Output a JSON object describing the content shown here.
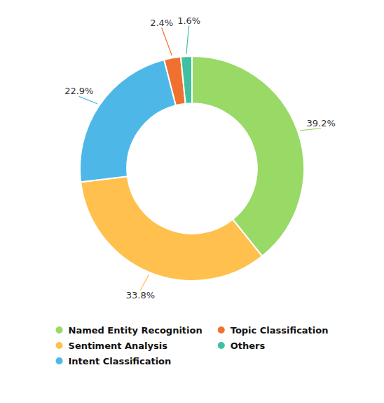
{
  "chart_data": {
    "type": "donut",
    "categories": [
      "Named Entity Recognition",
      "Sentiment Analysis",
      "Intent Classification",
      "Topic Classification",
      "Others"
    ],
    "values": [
      39.2,
      33.8,
      22.9,
      2.4,
      1.6
    ],
    "value_labels": [
      "39.2%",
      "33.8%",
      "22.9%",
      "2.4%",
      "1.6%"
    ],
    "colors": [
      "#99d966",
      "#ffc04d",
      "#4db8e8",
      "#f07030",
      "#40c0a0"
    ],
    "data_labels": true,
    "legend": "bottom"
  }
}
